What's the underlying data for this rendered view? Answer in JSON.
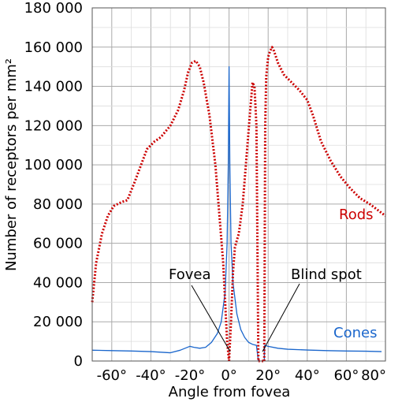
{
  "chart_data": {
    "type": "line",
    "xlabel": "Angle from fovea",
    "ylabel": "Number of receptors per mm²",
    "xlim": [
      -70,
      80
    ],
    "ylim": [
      0,
      180000
    ],
    "x_ticks": [
      -60,
      -40,
      -20,
      0,
      20,
      40,
      60,
      80
    ],
    "x_tick_labels": [
      "-60°",
      "-40°",
      "-20°",
      "0°",
      "20°",
      "40°",
      "60°",
      "80°"
    ],
    "y_ticks": [
      0,
      20000,
      40000,
      60000,
      80000,
      100000,
      120000,
      140000,
      160000,
      180000
    ],
    "y_tick_labels": [
      "0",
      "20 000",
      "40 000",
      "60 000",
      "80 000",
      "100 000",
      "120 000",
      "140 000",
      "160 000",
      "180 000"
    ],
    "grid": true,
    "series": [
      {
        "name": "Rods",
        "color": "#cc0000",
        "style": "dotted",
        "segments": [
          [
            [
              -70,
              30000
            ],
            [
              -68,
              50000
            ],
            [
              -65,
              65000
            ],
            [
              -62,
              74000
            ],
            [
              -59,
              79000
            ],
            [
              -55,
              81000
            ],
            [
              -52,
              82000
            ],
            [
              -48,
              92000
            ],
            [
              -45,
              100000
            ],
            [
              -42,
              108000
            ],
            [
              -38,
              112000
            ],
            [
              -35,
              114000
            ],
            [
              -30,
              120000
            ],
            [
              -26,
              128000
            ],
            [
              -23,
              138000
            ],
            [
              -21,
              147000
            ],
            [
              -19,
              152000
            ],
            [
              -17,
              153000
            ],
            [
              -15,
              150000
            ],
            [
              -13,
              142000
            ],
            [
              -10,
              125000
            ],
            [
              -7,
              100000
            ],
            [
              -5,
              75000
            ],
            [
              -3,
              50000
            ],
            [
              -2,
              30000
            ],
            [
              -1,
              10000
            ],
            [
              0,
              0
            ]
          ],
          [
            [
              0,
              0
            ],
            [
              1,
              20000
            ],
            [
              2,
              45000
            ],
            [
              3,
              58000
            ],
            [
              5,
              65000
            ],
            [
              7,
              80000
            ],
            [
              9,
              105000
            ],
            [
              11,
              130000
            ],
            [
              12,
              142000
            ],
            [
              13,
              140000
            ],
            [
              14,
              120000
            ],
            [
              14.5,
              60000
            ],
            [
              15,
              0
            ]
          ],
          [
            [
              15,
              0
            ],
            [
              18,
              0
            ]
          ],
          [
            [
              18,
              0
            ],
            [
              18.5,
              120000
            ],
            [
              19,
              145000
            ],
            [
              20,
              155000
            ],
            [
              21,
              158000
            ],
            [
              22,
              160000
            ],
            [
              23,
              158000
            ],
            [
              25,
              152000
            ],
            [
              28,
              146000
            ],
            [
              32,
              142000
            ],
            [
              36,
              138000
            ],
            [
              40,
              133000
            ],
            [
              43,
              125000
            ],
            [
              47,
              112000
            ],
            [
              52,
              102000
            ],
            [
              57,
              94000
            ],
            [
              62,
              88000
            ],
            [
              67,
              83000
            ],
            [
              72,
              80000
            ],
            [
              76,
              77000
            ],
            [
              80,
              74000
            ]
          ]
        ]
      },
      {
        "name": "Cones",
        "color": "#1a66cc",
        "style": "solid",
        "segments": [
          [
            [
              -70,
              5500
            ],
            [
              -60,
              5300
            ],
            [
              -50,
              5100
            ],
            [
              -40,
              4800
            ],
            [
              -35,
              4500
            ],
            [
              -30,
              4200
            ],
            [
              -25,
              5500
            ],
            [
              -20,
              7500
            ],
            [
              -18,
              7000
            ],
            [
              -15,
              6500
            ],
            [
              -12,
              7000
            ],
            [
              -9,
              9500
            ],
            [
              -6,
              14000
            ],
            [
              -4,
              20000
            ],
            [
              -2,
              35000
            ],
            [
              -1,
              60000
            ],
            [
              -0.4,
              100000
            ],
            [
              0,
              150000
            ],
            [
              0.4,
              100000
            ],
            [
              1,
              60000
            ],
            [
              2,
              40000
            ],
            [
              4,
              24000
            ],
            [
              6,
              16000
            ],
            [
              8,
              12000
            ],
            [
              10,
              9500
            ],
            [
              12,
              8500
            ],
            [
              14,
              8000
            ],
            [
              15,
              0
            ]
          ],
          [
            [
              18,
              0
            ],
            [
              18.2,
              8000
            ],
            [
              20,
              7500
            ],
            [
              25,
              6500
            ],
            [
              30,
              6000
            ],
            [
              40,
              5600
            ],
            [
              50,
              5300
            ],
            [
              60,
              5100
            ],
            [
              70,
              5000
            ],
            [
              78,
              4800
            ]
          ]
        ]
      }
    ],
    "series_labels": {
      "rods": "Rods",
      "cones": "Cones"
    },
    "annotations": {
      "fovea": "Fovea",
      "blind_spot": "Blind spot"
    }
  }
}
